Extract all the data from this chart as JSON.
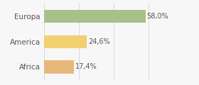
{
  "categories": [
    "Europa",
    "America",
    "Africa"
  ],
  "values": [
    58.0,
    24.6,
    17.4
  ],
  "labels": [
    "58,0%",
    "24,6%",
    "17,4%"
  ],
  "bar_colors": [
    "#a8c08a",
    "#f0d070",
    "#e8b87a"
  ],
  "background_color": "#f7f7f7",
  "xlim": [
    0,
    75
  ],
  "bar_height": 0.52,
  "label_fontsize": 7.0,
  "tick_fontsize": 7.5,
  "tick_color": "#555555",
  "label_color": "#555555"
}
